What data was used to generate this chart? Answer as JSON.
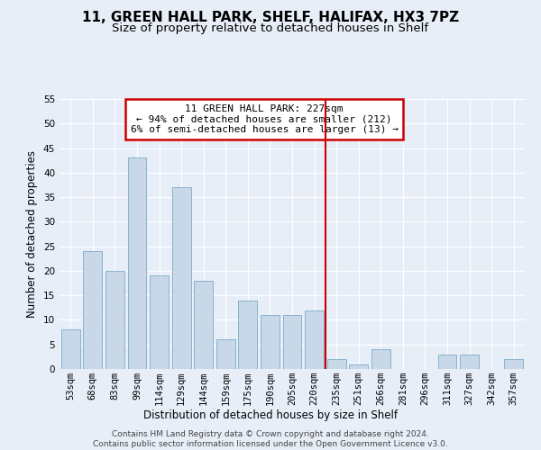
{
  "title": "11, GREEN HALL PARK, SHELF, HALIFAX, HX3 7PZ",
  "subtitle": "Size of property relative to detached houses in Shelf",
  "xlabel": "Distribution of detached houses by size in Shelf",
  "ylabel": "Number of detached properties",
  "categories": [
    "53sqm",
    "68sqm",
    "83sqm",
    "99sqm",
    "114sqm",
    "129sqm",
    "144sqm",
    "159sqm",
    "175sqm",
    "190sqm",
    "205sqm",
    "220sqm",
    "235sqm",
    "251sqm",
    "266sqm",
    "281sqm",
    "296sqm",
    "311sqm",
    "327sqm",
    "342sqm",
    "357sqm"
  ],
  "values": [
    8,
    24,
    20,
    43,
    19,
    37,
    18,
    6,
    14,
    11,
    11,
    12,
    2,
    1,
    4,
    0,
    0,
    3,
    3,
    0,
    2
  ],
  "bar_color": "#c8d8e8",
  "bar_edge_color": "#7aaac8",
  "vline_color": "#cc0000",
  "annotation_text": "11 GREEN HALL PARK: 227sqm\n← 94% of detached houses are smaller (212)\n6% of semi-detached houses are larger (13) →",
  "annotation_box_color": "#ffffff",
  "annotation_box_edge_color": "#cc0000",
  "ylim": [
    0,
    55
  ],
  "yticks": [
    0,
    5,
    10,
    15,
    20,
    25,
    30,
    35,
    40,
    45,
    50,
    55
  ],
  "footer_text": "Contains HM Land Registry data © Crown copyright and database right 2024.\nContains public sector information licensed under the Open Government Licence v3.0.",
  "bg_color": "#e8eef8",
  "grid_color": "#ffffff",
  "title_fontsize": 11,
  "subtitle_fontsize": 9.5,
  "axis_label_fontsize": 8.5,
  "tick_fontsize": 7.5,
  "annotation_fontsize": 8,
  "footer_fontsize": 6.5
}
